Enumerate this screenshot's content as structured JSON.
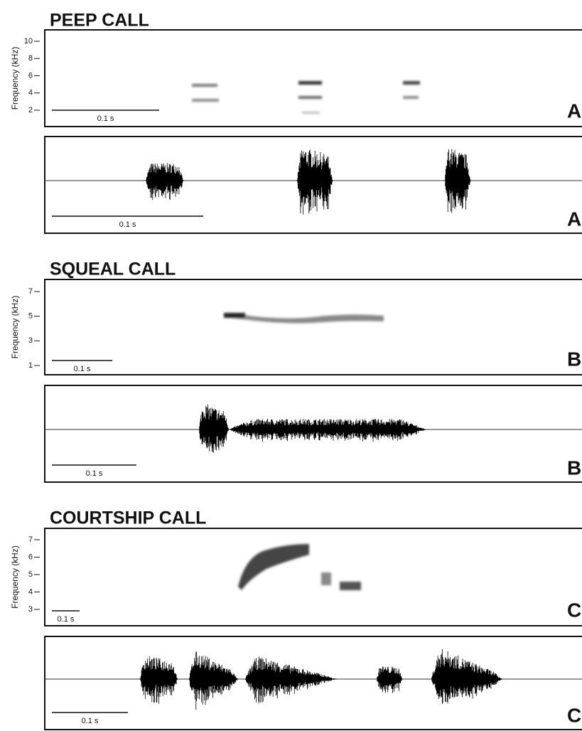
{
  "sections": [
    {
      "title": "PEEP CALL",
      "spectrogram": {
        "y_label": "Frequency (kHz)",
        "yticks": [
          2,
          4,
          6,
          8,
          10
        ],
        "scale_label": "0.1 s",
        "panel": "A"
      },
      "waveform": {
        "scale_label": "0.1 s",
        "panel": "A"
      }
    },
    {
      "title": "SQUEAL CALL",
      "spectrogram": {
        "y_label": "Frequency (kHz)",
        "yticks": [
          1,
          3,
          5,
          7
        ],
        "scale_label": "0.1 s",
        "panel": "B"
      },
      "waveform": {
        "scale_label": "0.1 s",
        "panel": "B"
      }
    },
    {
      "title": "COURTSHIP CALL",
      "spectrogram": {
        "y_label": "Frequency (kHz)",
        "yticks": [
          3,
          4,
          5,
          6,
          7
        ],
        "scale_label": "0.1 s",
        "panel": "C"
      },
      "waveform": {
        "scale_label": "0.1 s",
        "panel": "C"
      }
    }
  ]
}
